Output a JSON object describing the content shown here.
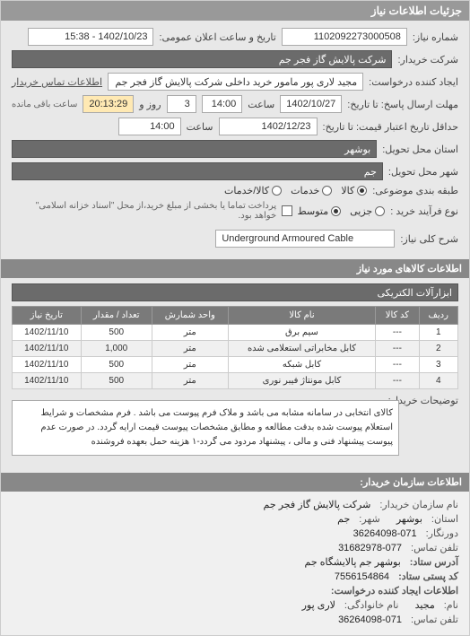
{
  "header": {
    "title": "جزئیات اطلاعات نیاز"
  },
  "form": {
    "request_number_label": "شماره نیاز:",
    "request_number": "1102092273000508",
    "public_datetime_label": "تاریخ و ساعت اعلان عمومی:",
    "public_datetime": "1402/10/23 - 15:38",
    "buyer_company_label": "شرکت خریدار:",
    "buyer_company": "شرکت پالایش گاز فجر جم",
    "requester_label": "ایجاد کننده درخواست:",
    "requester": "مجید لاری پور مامور خرید داخلی شرکت پالایش گاز فجر جم",
    "buyer_contact_label": "اطلاعات تماس خریدار",
    "response_deadline_label": "مهلت ارسال پاسخ: تا تاریخ:",
    "response_date": "1402/10/27",
    "time_label": "ساعت",
    "response_time": "14:00",
    "days_label": "روز و",
    "days_remain": "3",
    "time_remain": "20:13:29",
    "time_remain_label": "ساعت باقی مانده",
    "validity_label": "حداقل تاریخ اعتبار قیمت: تا تاریخ:",
    "validity_date": "1402/12/23",
    "validity_time": "14:00",
    "province_label": "استان محل تحویل:",
    "province": "بوشهر",
    "city_label": "شهر محل تحویل:",
    "city": "جم",
    "budget_class_label": "طبقه بندی موضوعی:",
    "budget_options": {
      "kala": "کالا",
      "khadamat": "خدمات",
      "kala_khadamat": "کالا/خدمات"
    },
    "process_type_label": "نوع فرآیند خرید :",
    "process_options": {
      "jozi": "جزیی",
      "motevasset": "متوسط"
    },
    "process_note": "پرداخت تماما یا بخشی از مبلغ خرید،از محل \"اسناد خزانه اسلامی\" خواهد بود.",
    "checkbox_label": "",
    "main_desc_label": "شرح کلی نیاز:",
    "main_desc": "Underground Armoured Cable"
  },
  "items": {
    "section_title": "اطلاعات کالاهای مورد نیاز",
    "tool_group": "ابزارآلات الکتریکی",
    "columns": [
      "ردیف",
      "کد کالا",
      "نام کالا",
      "واحد شمارش",
      "تعداد / مقدار",
      "تاریخ نیاز"
    ],
    "rows": [
      [
        "1",
        "---",
        "سیم برق",
        "متر",
        "500",
        "1402/11/10"
      ],
      [
        "2",
        "---",
        "کابل مخابراتی استعلامی شده",
        "متر",
        "1,000",
        "1402/11/10"
      ],
      [
        "3",
        "---",
        "کابل شبکه",
        "متر",
        "500",
        "1402/11/10"
      ],
      [
        "4",
        "---",
        "کابل مونتاژ فیبر نوری",
        "متر",
        "500",
        "1402/11/10"
      ]
    ]
  },
  "description": {
    "label": "توضیحات خریدار:",
    "text": "کالای انتخابی در سامانه مشابه می باشد و ملاک فرم پیوست می باشد . فرم مشخصات و شرایط استعلام پیوست شده بدقت مطالعه و مطابق مشخصات پیوست قیمت ارایه گردد. در صورت عدم پیوست پیشنهاد فنی و مالی ، پیشنهاد مردود می گردد-۱ هزینه حمل بعهده فروشنده"
  },
  "buyer_info": {
    "section_title": "اطلاعات سازمان خریدار:",
    "org_label": "نام سازمان خریدار:",
    "org": "شرکت پالایش گاز فجر جم",
    "province_label": "استان:",
    "province": "بوشهر",
    "city_label": "شهر:",
    "city": "جم",
    "fax_label": "دورنگار:",
    "fax": "36264098-071",
    "phone_label": "تلفن تماس:",
    "phone": "31682978-077",
    "address_label": "آدرس ستاد:",
    "address": "بوشهر جم پالایشگاه جم",
    "postal_label": "کد پستی ستاد:",
    "postal": "7556154864",
    "creator_section": "اطلاعات ایجاد کننده درخواست:",
    "creator_name_label": "نام:",
    "creator_name": "مجید",
    "creator_family_label": "نام خانوادگی:",
    "creator_family": "لاری پور",
    "creator_phone_label": "تلفن تماس:",
    "creator_phone": "36264098-071"
  }
}
